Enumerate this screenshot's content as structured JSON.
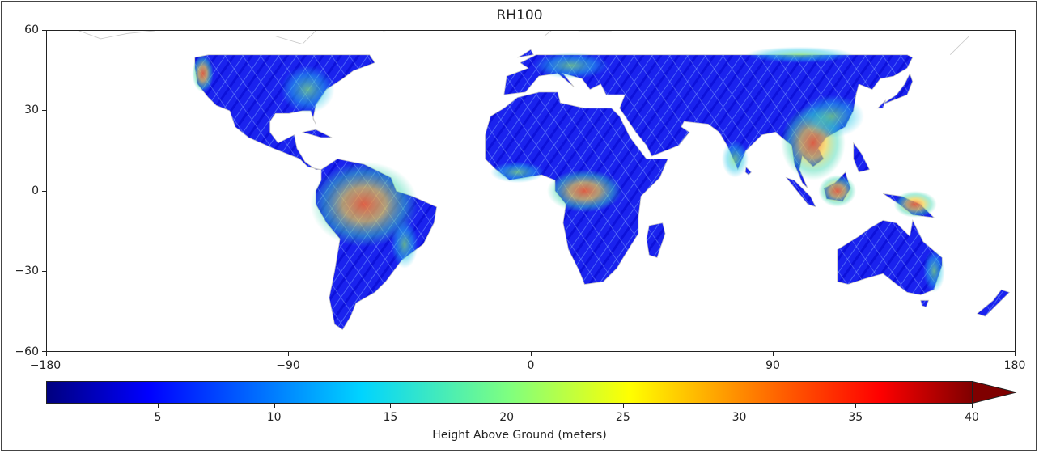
{
  "title": "RH100",
  "map": {
    "x_ticks": [
      "−180",
      "−90",
      "0",
      "90",
      "180"
    ],
    "x_tick_values": [
      -180,
      -90,
      0,
      90,
      180
    ],
    "y_ticks": [
      "60",
      "30",
      "0",
      "−30",
      "−60"
    ],
    "y_tick_values": [
      60,
      30,
      0,
      -30,
      -60
    ],
    "lon_range": [
      -180,
      180
    ],
    "lat_range": [
      -60,
      60
    ],
    "land_color": "#1a1aee",
    "coast_color": "#c8c8c8"
  },
  "colorbar": {
    "label": "Height Above Ground (meters)",
    "ticks": [
      "5",
      "10",
      "15",
      "20",
      "25",
      "30",
      "35",
      "40"
    ],
    "tick_values": [
      5,
      10,
      15,
      20,
      25,
      30,
      35,
      40
    ],
    "range": [
      0.2,
      40
    ],
    "extend": "max",
    "colormap": "jet",
    "colors": [
      "#00007f",
      "#0000ff",
      "#007fff",
      "#00ffff",
      "#7fff7f",
      "#ffff00",
      "#ff7f00",
      "#ff0000",
      "#7f0000"
    ]
  }
}
